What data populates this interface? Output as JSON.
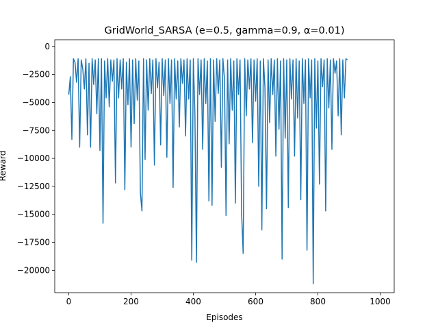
{
  "chart_data": {
    "type": "line",
    "title": "GridWorld_SARSA (e=0.5, gamma=0.9, α=0.01)",
    "xlabel": "Episodes",
    "ylabel": "Reward",
    "xlim": [
      -45,
      1045
    ],
    "ylim": [
      -22000,
      600
    ],
    "xticks": [
      0,
      200,
      400,
      600,
      800,
      1000
    ],
    "xtick_labels": [
      "0",
      "200",
      "400",
      "600",
      "800",
      "1000"
    ],
    "yticks": [
      0,
      -2500,
      -5000,
      -7500,
      -10000,
      -12500,
      -15000,
      -17500,
      -20000
    ],
    "ytick_labels": [
      "0",
      "−2500",
      "−5000",
      "−7500",
      "−10000",
      "−12500",
      "−15000",
      "−17500",
      "−20000"
    ],
    "grid": false,
    "series": [
      {
        "color": "#1f77b4",
        "x_start": 0,
        "x_step": 5,
        "y": [
          -4300,
          -2700,
          -8300,
          -1100,
          -1400,
          -3200,
          -1100,
          -9000,
          -1200,
          -2000,
          -3800,
          -1100,
          -7900,
          -1500,
          -9000,
          -1100,
          -3400,
          -1200,
          -6000,
          -1100,
          -9300,
          -1100,
          -15800,
          -1300,
          -4600,
          -1100,
          -5400,
          -1200,
          -3100,
          -1200,
          -12200,
          -1100,
          -4600,
          -1200,
          -3800,
          -1100,
          -12800,
          -1400,
          -5200,
          -1100,
          -9000,
          -1200,
          -6900,
          -1100,
          -4800,
          -1300,
          -13100,
          -14700,
          -1100,
          -10100,
          -1200,
          -5700,
          -1100,
          -4200,
          -1200,
          -10600,
          -1100,
          -3700,
          -1400,
          -8800,
          -1100,
          -4400,
          -1200,
          -9900,
          -1100,
          -5100,
          -1200,
          -12600,
          -1100,
          -4700,
          -1300,
          -7200,
          -1100,
          -3300,
          -1200,
          -8000,
          -1100,
          -4700,
          -1200,
          -19100,
          -1100,
          -5900,
          -19300,
          -1100,
          -4300,
          -1200,
          -9200,
          -1100,
          -5100,
          -1300,
          -13800,
          -1100,
          -14200,
          -1200,
          -6700,
          -1100,
          -4200,
          -1200,
          -10800,
          -1100,
          -2900,
          -15100,
          -1200,
          -8700,
          -1100,
          -5700,
          -1300,
          -14000,
          -1100,
          -4300,
          -1200,
          -14900,
          -18500,
          -1100,
          -6200,
          -1200,
          -3800,
          -1100,
          -8600,
          -1200,
          -4900,
          -1100,
          -12500,
          -1300,
          -16400,
          -1100,
          -3700,
          -14500,
          -1200,
          -6800,
          -1100,
          -4300,
          -1200,
          -9800,
          -1100,
          -7400,
          -1300,
          -19000,
          -1100,
          -8200,
          -1200,
          -14400,
          -1100,
          -4700,
          -1200,
          -9800,
          -1100,
          -6400,
          -1300,
          -13700,
          -1100,
          -5100,
          -1200,
          -18200,
          -1100,
          -4600,
          -1200,
          -21200,
          -1100,
          -7300,
          -1300,
          -12300,
          -1100,
          -3600,
          -1200,
          -14700,
          -1100,
          -5500,
          -1200,
          -9200,
          -1100,
          -2400,
          -1300,
          -6200,
          -1100,
          -7900,
          -1200,
          -4600,
          -1100,
          -1200
        ]
      }
    ]
  }
}
